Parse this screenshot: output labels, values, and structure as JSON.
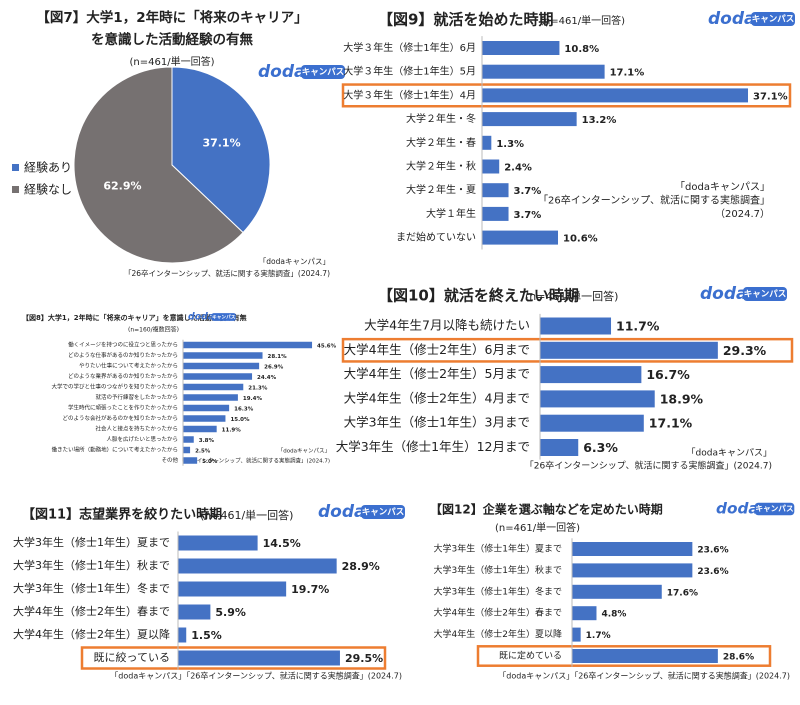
{
  "logo": {
    "text": "doda",
    "badge": "キャンパス"
  },
  "chart_data": [
    {
      "type": "pie",
      "title": [
        "【図7】大学1，2年時に「将来のキャリア」",
        "を意識した活動経験の有無"
      ],
      "subtitle": "(n=461/単一回答)",
      "categories": [
        "経験あり",
        "経験なし"
      ],
      "values": [
        37.1,
        62.9
      ],
      "value_labels": [
        "37.1%",
        "62.9%"
      ],
      "colors": [
        "#4472c4",
        "#767171"
      ],
      "source": [
        "「dodaキャンパス」",
        "「26卒インターンシップ、就活に関する実態調査」(2024.7)"
      ]
    },
    {
      "type": "bar",
      "orientation": "horizontal",
      "title": "【図9】就活を始めた時期",
      "subtitle": "(n=461/単一回答)",
      "categories": [
        "大学３年生（修士1年生）6月",
        "大学３年生（修士1年生）5月",
        "大学３年生（修士1年生）4月",
        "大学２年生・冬",
        "大学２年生・春",
        "大学２年生・秋",
        "大学２年生・夏",
        "大学１年生",
        "まだ始めていない"
      ],
      "values": [
        10.8,
        17.1,
        37.1,
        13.2,
        1.3,
        2.4,
        3.7,
        3.7,
        10.6
      ],
      "value_labels": [
        "10.8%",
        "17.1%",
        "37.1%",
        "13.2%",
        "1.3%",
        "2.4%",
        "3.7%",
        "3.7%",
        "10.6%"
      ],
      "color": "#4472c4",
      "highlight": 2,
      "highlight_color": "#ed7d31",
      "source": [
        "「dodaキャンパス」",
        "「26卒インターンシップ、就活に関する実態調査」",
        "（2024.7）"
      ]
    },
    {
      "type": "bar",
      "orientation": "horizontal",
      "title": "【図8】大学1，2年時に「将来のキャリア」を意識した活動経験の有無",
      "subtitle": "(n=160/複数回答)",
      "categories": [
        "働くイメージを持つのに役立つと思ったから",
        "どのような仕事があるのか知りたかったから",
        "やりたい仕事について考えたかったから",
        "どのような業界があるのか知りたかったから",
        "大学での学びと仕事のつながりを知りたかったから",
        "就活の予行練習をしたかったから",
        "学生時代に頑張ったことを作りたかったから",
        "どのような会社があるのかを知りたかったから",
        "社会人と接点を持ちたかったから",
        "人脈を広げたいと思ったから",
        "働きたい場所（勤務地）について考えたかったから",
        "その他"
      ],
      "values": [
        45.6,
        28.1,
        26.9,
        24.4,
        21.3,
        19.4,
        16.3,
        15.0,
        11.9,
        3.8,
        2.5,
        5.0
      ],
      "value_labels": [
        "45.6%",
        "28.1%",
        "26.9%",
        "24.4%",
        "21.3%",
        "19.4%",
        "16.3%",
        "15.0%",
        "11.9%",
        "3.8%",
        "2.5%",
        "5.0%"
      ],
      "color": "#4472c4",
      "source": [
        "「dodaキャンパス」",
        "「26卒インターンシップ、就活に関する実態調査」(2024.7)"
      ]
    },
    {
      "type": "bar",
      "orientation": "horizontal",
      "title": "【図10】就活を終えたい時期",
      "subtitle": "(n=461/単一回答)",
      "categories": [
        "大学4年生7月以降も続けたい",
        "大学4年生（修士2年生）6月まで",
        "大学4年生（修士2年生）5月まで",
        "大学4年生（修士2年生）4月まで",
        "大学3年生（修士1年生）3月まで",
        "大学3年生（修士1年生）12月まで"
      ],
      "values": [
        11.7,
        29.3,
        16.7,
        18.9,
        17.1,
        6.3
      ],
      "value_labels": [
        "11.7%",
        "29.3%",
        "16.7%",
        "18.9%",
        "17.1%",
        "6.3%"
      ],
      "color": "#4472c4",
      "highlight": 1,
      "highlight_color": "#ed7d31",
      "source": [
        "「dodaキャンパス」",
        "「26卒インターンシップ、就活に関する実態調査」(2024.7)"
      ]
    },
    {
      "type": "bar",
      "orientation": "horizontal",
      "title": "【図11】志望業界を絞りたい時期",
      "subtitle": "(n=461/単一回答)",
      "categories": [
        "大学3年生（修士1年生）夏まで",
        "大学3年生（修士1年生）秋まで",
        "大学3年生（修士1年生）冬まで",
        "大学4年生（修士2年生）春まで",
        "大学4年生（修士2年生）夏以降",
        "既に絞っている"
      ],
      "values": [
        14.5,
        28.9,
        19.7,
        5.9,
        1.5,
        29.5
      ],
      "value_labels": [
        "14.5%",
        "28.9%",
        "19.7%",
        "5.9%",
        "1.5%",
        "29.5%"
      ],
      "color": "#4472c4",
      "highlight": 5,
      "highlight_color": "#ed7d31",
      "source": [
        "「dodaキャンパス」「26卒インターンシップ、就活に関する実態調査」(2024.7)"
      ]
    },
    {
      "type": "bar",
      "orientation": "horizontal",
      "title": "【図12】企業を選ぶ軸などを定めたい時期",
      "subtitle": "(n=461/単一回答)",
      "categories": [
        "大学3年生（修士1年生）夏まで",
        "大学3年生（修士1年生）秋まで",
        "大学3年生（修士1年生）冬まで",
        "大学4年生（修士2年生）春まで",
        "大学4年生（修士2年生）夏以降",
        "既に定めている"
      ],
      "values": [
        23.6,
        23.6,
        17.6,
        4.8,
        1.7,
        28.6
      ],
      "value_labels": [
        "23.6%",
        "23.6%",
        "17.6%",
        "4.8%",
        "1.7%",
        "28.6%"
      ],
      "color": "#4472c4",
      "highlight": 5,
      "highlight_color": "#ed7d31",
      "source": [
        "「dodaキャンパス」「26卒インターンシップ、就活に関する実態調査」(2024.7)"
      ]
    }
  ]
}
